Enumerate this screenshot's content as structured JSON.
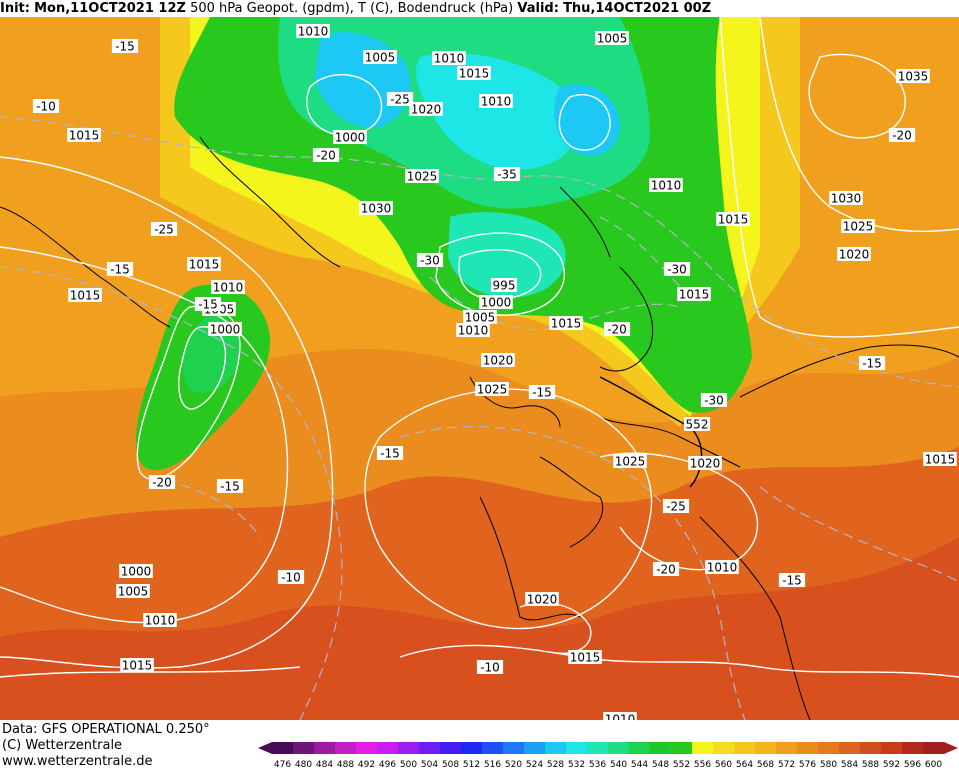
{
  "header": {
    "init_label": "Init:",
    "init_value": "Mon,11OCT2021 12Z",
    "title": "500 hPa Geopot. (gpdm), T (C), Bodendruck (hPa)",
    "valid_label": "Valid:",
    "valid_value": "Thu,14OCT2021 00Z"
  },
  "footer": {
    "data_line": "Data: GFS OPERATIONAL 0.250°",
    "copyright_line": "(C) Wetterzentrale",
    "url_line": "www.wetterzentrale.de"
  },
  "color_scale": {
    "labels": [
      "476",
      "480",
      "484",
      "488",
      "492",
      "496",
      "500",
      "504",
      "508",
      "512",
      "516",
      "520",
      "524",
      "528",
      "532",
      "536",
      "540",
      "544",
      "548",
      "552",
      "556",
      "560",
      "564",
      "568",
      "572",
      "576",
      "580",
      "584",
      "588",
      "592",
      "596",
      "600"
    ],
    "colors": [
      "#4b0a55",
      "#6f1478",
      "#9a1aa0",
      "#c41ec8",
      "#e61ee6",
      "#c81ef0",
      "#9b1ef0",
      "#6e1ef5",
      "#461ef5",
      "#1e28f5",
      "#1e50f5",
      "#1e78f5",
      "#1ea0f5",
      "#1ec8f5",
      "#1ee6e6",
      "#1ee6b4",
      "#1edc82",
      "#1ed250",
      "#1ec828",
      "#28c81e",
      "#f5f51e",
      "#f5dc1e",
      "#f5c81e",
      "#f5b41e",
      "#f0a01e",
      "#eb8c1e",
      "#e6781e",
      "#dc641e",
      "#d2501e",
      "#c83c1e",
      "#b4281e",
      "#a01e1e"
    ]
  },
  "map": {
    "pressure_labels": [
      "1010",
      "1005",
      "1010",
      "1015",
      "1005",
      "1035",
      "1015",
      "1020",
      "1000",
      "1010",
      "1025",
      "1030",
      "1010",
      "1015",
      "1030",
      "1025",
      "1020",
      "1015",
      "1010",
      "1005",
      "1000",
      "995",
      "1000",
      "1005",
      "1010",
      "1015",
      "1015",
      "1020",
      "1025",
      "1025",
      "1020",
      "1015",
      "1010",
      "1000",
      "1005",
      "1010",
      "1015",
      "1020",
      "1015",
      "1010",
      "1015"
    ],
    "temperature_labels": [
      "-15",
      "-10",
      "-25",
      "-20",
      "-35",
      "-20",
      "-25",
      "-15",
      "-15",
      "-30",
      "-30",
      "-20",
      "-15",
      "-30",
      "-15",
      "-15",
      "-20",
      "-15",
      "-25",
      "-10",
      "-20",
      "-15",
      "-10"
    ],
    "height_labels": [
      "552"
    ]
  }
}
